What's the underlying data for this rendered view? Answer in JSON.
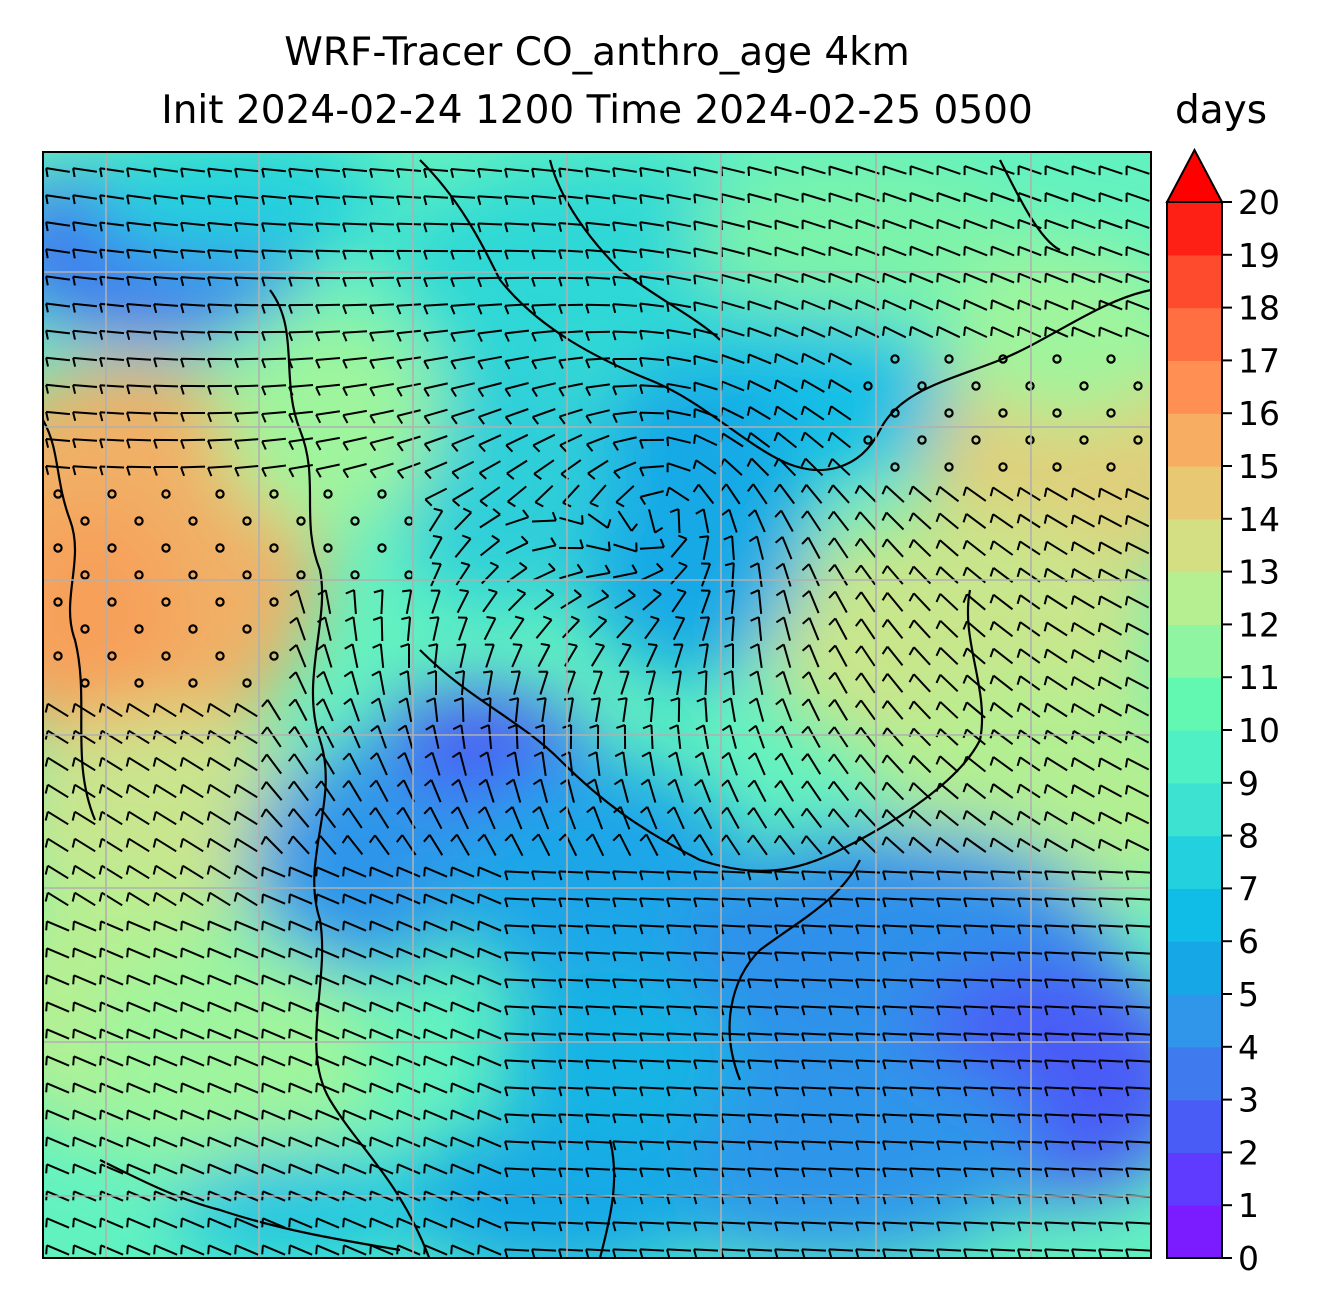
{
  "title_line1": "WRF-Tracer CO_anthro_age 4km",
  "title_line2": "Init 2024-02-24 1200 Time 2024-02-25 0500",
  "units": "days",
  "chart_data": {
    "type": "heatmap",
    "title": "WRF-Tracer CO_anthro_age 4km",
    "subtitle": "Init 2024-02-24 1200 Time 2024-02-25 0500",
    "variable": "CO_anthro_age",
    "units": "days",
    "colorbar": {
      "min": 0,
      "max": 20,
      "step": 1,
      "extend": "max",
      "ticks": [
        "0",
        "1",
        "2",
        "3",
        "4",
        "5",
        "6",
        "7",
        "8",
        "9",
        "10",
        "11",
        "12",
        "13",
        "14",
        "15",
        "16",
        "17",
        "18",
        "19",
        "20"
      ],
      "colormap": "rainbow",
      "colors": [
        "#7a1cff",
        "#5e3bff",
        "#4a5cf6",
        "#3f7bef",
        "#2f96ea",
        "#16a8e6",
        "#0fbde6",
        "#22d0de",
        "#3de2d0",
        "#4ff0c3",
        "#62f8b2",
        "#8ff5a0",
        "#b5ef92",
        "#d4df84",
        "#e8c873",
        "#f7ad62",
        "#ff8f52",
        "#ff6f41",
        "#ff4b2d",
        "#ff2015"
      ]
    },
    "overlay": [
      "wind barbs",
      "calm wind circles",
      "coastlines and borders",
      "lat/lon gridlines"
    ],
    "grid": true
  }
}
